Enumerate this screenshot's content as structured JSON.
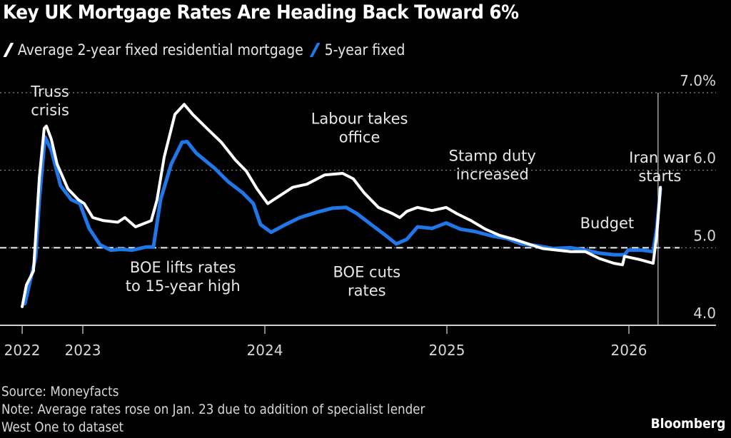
{
  "header": {
    "title": "Key UK Mortgage Rates Are Heading Back Toward 6%"
  },
  "footer": {
    "source": "Source: Moneyfacts",
    "note_line1": "Note: Average rates rose on Jan. 23 due to addition of specialist lender",
    "note_line2": "West One to dataset",
    "brand": "Bloomberg"
  },
  "colors": {
    "background": "#000000",
    "two_year": "#ffffff",
    "five_year": "#1f77e8",
    "grid": "#8a8a8a",
    "axis": "#cfcfcf"
  },
  "chart_data": {
    "type": "line",
    "title": "Key UK Mortgage Rates Are Heading Back Toward 6%",
    "xlabel": "",
    "ylabel": "",
    "y_unit": "%",
    "ylim": [
      4.0,
      7.0
    ],
    "y_ticks": [
      {
        "value": 7.0,
        "label": "7.0%"
      },
      {
        "value": 6.0,
        "label": "6.0"
      },
      {
        "value": 5.0,
        "label": "5.0"
      },
      {
        "value": 4.0,
        "label": "4.0"
      }
    ],
    "xlim": [
      2022.67,
      2026.45
    ],
    "x_ticks": [
      {
        "value": 2022.667,
        "label": "2022"
      },
      {
        "value": 2023.0,
        "label": "2023"
      },
      {
        "value": 2024.0,
        "label": "2024"
      },
      {
        "value": 2025.0,
        "label": "2025"
      },
      {
        "value": 2026.0,
        "label": "2026"
      }
    ],
    "grid": true,
    "y_axis_side": "right",
    "legend_placement": "top-left",
    "reference_line": {
      "value": 5.0,
      "style": "dashed"
    },
    "event_line": {
      "x": 2026.16,
      "label": "Iran war starts"
    },
    "series": [
      {
        "name": "Average 2-year fixed residential mortgage",
        "color": "#ffffff",
        "points": [
          [
            2022.667,
            4.24
          ],
          [
            2022.69,
            4.52
          ],
          [
            2022.729,
            4.7
          ],
          [
            2022.741,
            5.15
          ],
          [
            2022.761,
            5.9
          ],
          [
            2022.788,
            6.54
          ],
          [
            2022.8,
            6.57
          ],
          [
            2022.827,
            6.4
          ],
          [
            2022.859,
            6.08
          ],
          [
            2022.918,
            5.76
          ],
          [
            2022.976,
            5.62
          ],
          [
            2023.008,
            5.57
          ],
          [
            2023.055,
            5.39
          ],
          [
            2023.114,
            5.35
          ],
          [
            2023.192,
            5.33
          ],
          [
            2023.231,
            5.39
          ],
          [
            2023.29,
            5.27
          ],
          [
            2023.376,
            5.35
          ],
          [
            2023.408,
            5.62
          ],
          [
            2023.447,
            6.17
          ],
          [
            2023.506,
            6.72
          ],
          [
            2023.557,
            6.85
          ],
          [
            2023.604,
            6.72
          ],
          [
            2023.682,
            6.54
          ],
          [
            2023.761,
            6.36
          ],
          [
            2023.839,
            6.13
          ],
          [
            2023.898,
            5.99
          ],
          [
            2023.957,
            5.76
          ],
          [
            2024.016,
            5.57
          ],
          [
            2024.075,
            5.66
          ],
          [
            2024.153,
            5.78
          ],
          [
            2024.231,
            5.82
          ],
          [
            2024.329,
            5.94
          ],
          [
            2024.427,
            5.96
          ],
          [
            2024.486,
            5.89
          ],
          [
            2024.545,
            5.71
          ],
          [
            2024.624,
            5.52
          ],
          [
            2024.702,
            5.44
          ],
          [
            2024.741,
            5.39
          ],
          [
            2024.78,
            5.47
          ],
          [
            2024.839,
            5.52
          ],
          [
            2024.918,
            5.48
          ],
          [
            2024.996,
            5.52
          ],
          [
            2025.055,
            5.44
          ],
          [
            2025.133,
            5.35
          ],
          [
            2025.212,
            5.24
          ],
          [
            2025.29,
            5.16
          ],
          [
            2025.369,
            5.11
          ],
          [
            2025.447,
            5.05
          ],
          [
            2025.525,
            4.99
          ],
          [
            2025.604,
            4.97
          ],
          [
            2025.682,
            4.95
          ],
          [
            2025.761,
            4.95
          ],
          [
            2025.839,
            4.86
          ],
          [
            2025.918,
            4.8
          ],
          [
            2025.965,
            4.78
          ],
          [
            2025.976,
            4.89
          ],
          [
            2026.055,
            4.85
          ],
          [
            2026.133,
            4.8
          ],
          [
            2026.153,
            5.16
          ],
          [
            2026.173,
            5.78
          ]
        ]
      },
      {
        "name": "5-year fixed",
        "color": "#1f77e8",
        "points": [
          [
            2022.682,
            4.28
          ],
          [
            2022.741,
            4.88
          ],
          [
            2022.761,
            5.62
          ],
          [
            2022.792,
            6.43
          ],
          [
            2022.827,
            6.26
          ],
          [
            2022.878,
            5.8
          ],
          [
            2022.937,
            5.62
          ],
          [
            2022.984,
            5.57
          ],
          [
            2023.035,
            5.25
          ],
          [
            2023.094,
            5.04
          ],
          [
            2023.153,
            4.97
          ],
          [
            2023.212,
            4.98
          ],
          [
            2023.271,
            4.97
          ],
          [
            2023.349,
            5.01
          ],
          [
            2023.388,
            5.01
          ],
          [
            2023.427,
            5.62
          ],
          [
            2023.486,
            6.08
          ],
          [
            2023.545,
            6.36
          ],
          [
            2023.573,
            6.37
          ],
          [
            2023.624,
            6.22
          ],
          [
            2023.722,
            6.03
          ],
          [
            2023.8,
            5.85
          ],
          [
            2023.878,
            5.71
          ],
          [
            2023.937,
            5.57
          ],
          [
            2023.976,
            5.3
          ],
          [
            2024.035,
            5.2
          ],
          [
            2024.114,
            5.3
          ],
          [
            2024.192,
            5.39
          ],
          [
            2024.29,
            5.46
          ],
          [
            2024.369,
            5.51
          ],
          [
            2024.447,
            5.52
          ],
          [
            2024.506,
            5.44
          ],
          [
            2024.584,
            5.3
          ],
          [
            2024.663,
            5.16
          ],
          [
            2024.722,
            5.05
          ],
          [
            2024.78,
            5.11
          ],
          [
            2024.839,
            5.27
          ],
          [
            2024.918,
            5.25
          ],
          [
            2024.996,
            5.32
          ],
          [
            2025.075,
            5.24
          ],
          [
            2025.153,
            5.21
          ],
          [
            2025.251,
            5.15
          ],
          [
            2025.329,
            5.12
          ],
          [
            2025.408,
            5.05
          ],
          [
            2025.486,
            5.03
          ],
          [
            2025.584,
            4.99
          ],
          [
            2025.682,
            5.0
          ],
          [
            2025.761,
            4.97
          ],
          [
            2025.839,
            4.93
          ],
          [
            2025.918,
            4.91
          ],
          [
            2025.976,
            4.91
          ],
          [
            2025.996,
            4.97
          ],
          [
            2026.075,
            4.97
          ],
          [
            2026.133,
            4.95
          ],
          [
            2026.153,
            5.25
          ],
          [
            2026.173,
            5.76
          ]
        ]
      }
    ],
    "annotations": [
      {
        "lines": [
          "Truss",
          "crisis"
        ],
        "x": 2022.82,
        "y": 6.95,
        "anchor": "middle"
      },
      {
        "lines": [
          "BOE lifts rates",
          "to 15-year high"
        ],
        "x": 2023.55,
        "y": 4.68,
        "anchor": "middle"
      },
      {
        "lines": [
          "Labour takes",
          "office"
        ],
        "x": 2024.52,
        "y": 6.6,
        "anchor": "middle"
      },
      {
        "lines": [
          "BOE cuts",
          "rates"
        ],
        "x": 2024.56,
        "y": 4.62,
        "anchor": "middle"
      },
      {
        "lines": [
          "Stamp duty",
          "increased"
        ],
        "x": 2025.25,
        "y": 6.12,
        "anchor": "middle"
      },
      {
        "lines": [
          "Budget"
        ],
        "x": 2025.88,
        "y": 5.25,
        "anchor": "middle"
      },
      {
        "lines": [
          "Iran war",
          "starts"
        ],
        "x": 2026.17,
        "y": 6.1,
        "anchor": "middle"
      }
    ]
  }
}
